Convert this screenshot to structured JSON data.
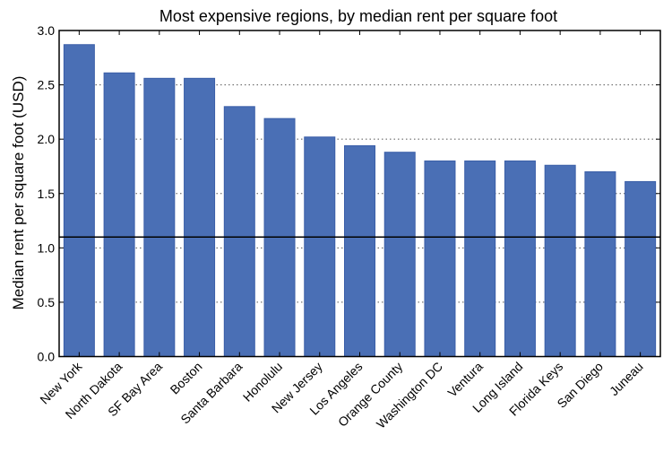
{
  "chart_data": {
    "type": "bar",
    "title": "Most expensive regions, by median rent per square foot",
    "xlabel": "",
    "ylabel": "Median rent per square foot (USD)",
    "ylim": [
      0,
      3.0
    ],
    "yticks": [
      "0.0",
      "0.5",
      "1.0",
      "1.5",
      "2.0",
      "2.5",
      "3.0"
    ],
    "grid": "horizontal dotted",
    "categories": [
      "New York",
      "North Dakota",
      "SF Bay Area",
      "Boston",
      "Santa Barbara",
      "Honolulu",
      "New Jersey",
      "Los Angeles",
      "Orange County",
      "Washington DC",
      "Ventura",
      "Long Island",
      "Florida Keys",
      "San Diego",
      "Juneau"
    ],
    "values": [
      2.87,
      2.61,
      2.56,
      2.56,
      2.3,
      2.19,
      2.02,
      1.94,
      1.88,
      1.8,
      1.8,
      1.8,
      1.76,
      1.7,
      1.61
    ],
    "reference_line": 1.1,
    "bar_color": "#4a6fb5"
  }
}
